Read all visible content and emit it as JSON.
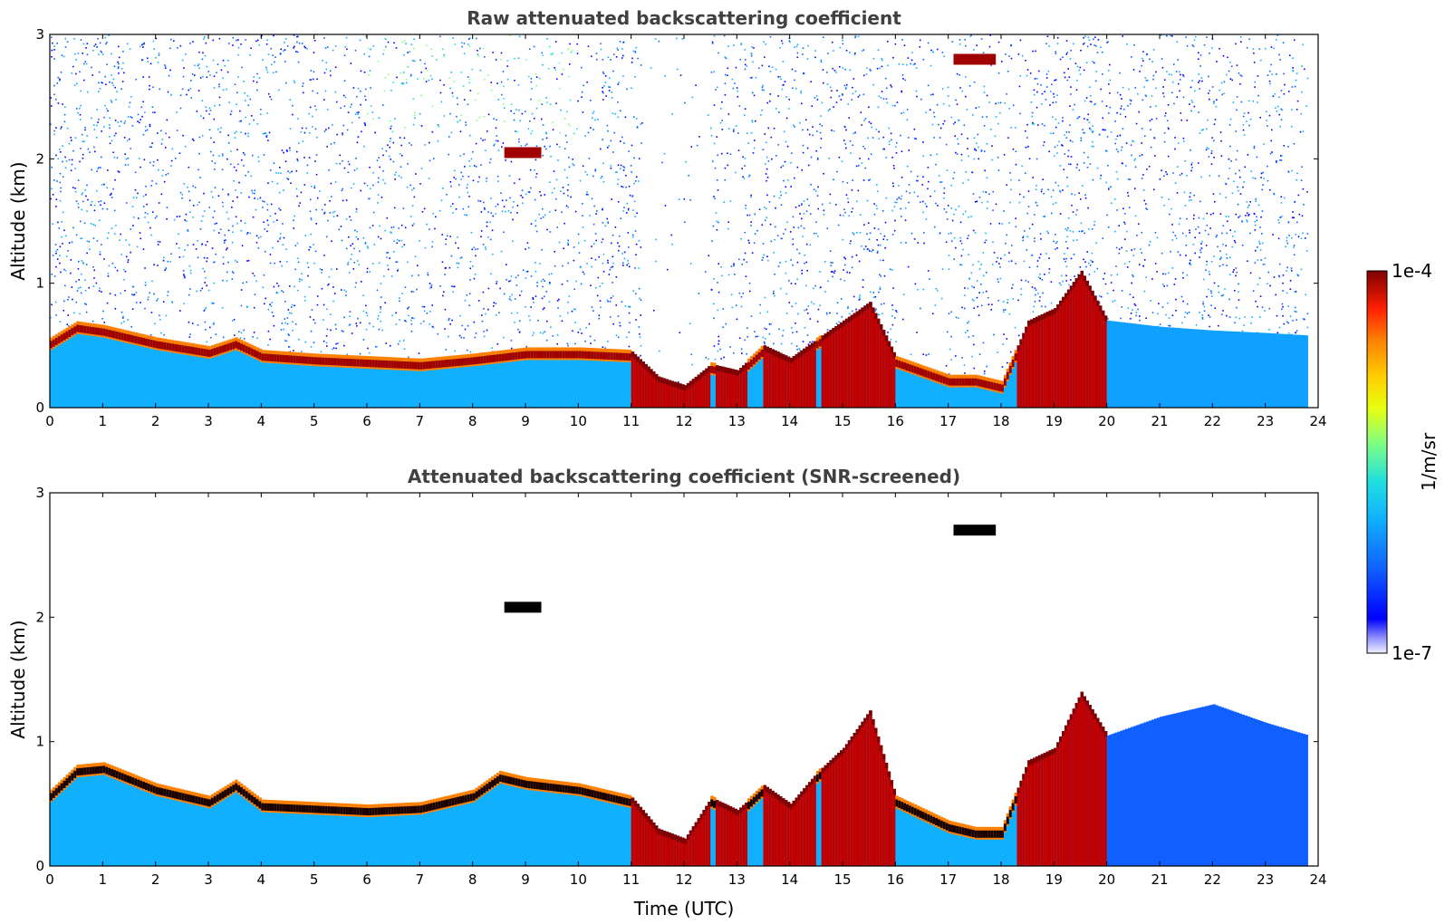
{
  "chart_data": [
    {
      "type": "heatmap",
      "title": "Raw attenuated backscattering coefficient",
      "ylabel": "Altitude (km)",
      "xlabel": "",
      "xlim": [
        0,
        24
      ],
      "ylim": [
        0,
        3
      ],
      "x_ticks": [
        "0",
        "1",
        "2",
        "3",
        "4",
        "5",
        "6",
        "7",
        "8",
        "9",
        "10",
        "11",
        "12",
        "13",
        "14",
        "15",
        "16",
        "17",
        "18",
        "19",
        "20",
        "21",
        "22",
        "23",
        "24"
      ],
      "y_ticks": [
        "0",
        "1",
        "2",
        "3"
      ],
      "layer_top_km": [
        [
          0,
          0.55
        ],
        [
          0.5,
          0.68
        ],
        [
          1,
          0.65
        ],
        [
          2,
          0.55
        ],
        [
          3,
          0.48
        ],
        [
          3.5,
          0.55
        ],
        [
          4,
          0.45
        ],
        [
          5,
          0.42
        ],
        [
          6,
          0.4
        ],
        [
          7,
          0.38
        ],
        [
          8,
          0.42
        ],
        [
          9,
          0.47
        ],
        [
          10,
          0.47
        ],
        [
          11,
          0.45
        ],
        [
          11.5,
          0.25
        ],
        [
          12,
          0.18
        ],
        [
          12.5,
          0.35
        ],
        [
          13,
          0.3
        ],
        [
          13.5,
          0.5
        ],
        [
          14,
          0.4
        ],
        [
          14.5,
          0.55
        ],
        [
          15,
          0.7
        ],
        [
          15.5,
          0.85
        ],
        [
          16,
          0.4
        ],
        [
          17,
          0.25
        ],
        [
          17.5,
          0.25
        ],
        [
          18,
          0.2
        ],
        [
          18.5,
          0.7
        ],
        [
          19,
          0.8
        ],
        [
          19.5,
          1.1
        ],
        [
          20,
          0.7
        ],
        [
          21,
          0.65
        ],
        [
          22,
          0.62
        ],
        [
          23,
          0.6
        ],
        [
          23.8,
          0.58
        ]
      ],
      "elevated_features": [
        {
          "t_start": 8.6,
          "t_end": 9.3,
          "alt_km": 2.05
        },
        {
          "t_start": 17.1,
          "t_end": 17.9,
          "alt_km": 2.8
        }
      ],
      "colorbar": {
        "min_label": "1e-7",
        "max_label": "1e-4",
        "unit": "1/m/sr",
        "scale": "log"
      }
    },
    {
      "type": "heatmap",
      "title": "Attenuated backscattering coefficient (SNR-screened)",
      "ylabel": "Altitude (km)",
      "xlabel": "Time (UTC)",
      "xlim": [
        0,
        24
      ],
      "ylim": [
        0,
        3
      ],
      "x_ticks": [
        "0",
        "1",
        "2",
        "3",
        "4",
        "5",
        "6",
        "7",
        "8",
        "9",
        "10",
        "11",
        "12",
        "13",
        "14",
        "15",
        "16",
        "17",
        "18",
        "19",
        "20",
        "21",
        "22",
        "23",
        "24"
      ],
      "y_ticks": [
        "0",
        "1",
        "2",
        "3"
      ],
      "layer_top_km": [
        [
          0,
          0.6
        ],
        [
          0.5,
          0.8
        ],
        [
          1,
          0.82
        ],
        [
          2,
          0.65
        ],
        [
          3,
          0.55
        ],
        [
          3.5,
          0.68
        ],
        [
          4,
          0.52
        ],
        [
          5,
          0.5
        ],
        [
          6,
          0.48
        ],
        [
          7,
          0.5
        ],
        [
          8,
          0.6
        ],
        [
          8.5,
          0.75
        ],
        [
          9,
          0.7
        ],
        [
          10,
          0.65
        ],
        [
          11,
          0.55
        ],
        [
          11.5,
          0.3
        ],
        [
          12,
          0.22
        ],
        [
          12.5,
          0.55
        ],
        [
          13,
          0.45
        ],
        [
          13.5,
          0.65
        ],
        [
          14,
          0.5
        ],
        [
          14.5,
          0.75
        ],
        [
          15,
          0.95
        ],
        [
          15.5,
          1.25
        ],
        [
          16,
          0.55
        ],
        [
          17,
          0.35
        ],
        [
          17.5,
          0.3
        ],
        [
          18,
          0.3
        ],
        [
          18.5,
          0.85
        ],
        [
          19,
          0.95
        ],
        [
          19.5,
          1.4
        ],
        [
          20,
          1.05
        ],
        [
          21,
          1.2
        ],
        [
          22,
          1.3
        ],
        [
          23,
          1.15
        ],
        [
          23.8,
          1.05
        ]
      ],
      "elevated_features": [
        {
          "t_start": 8.6,
          "t_end": 9.3,
          "alt_km": 2.08
        },
        {
          "t_start": 17.1,
          "t_end": 17.9,
          "alt_km": 2.7
        }
      ],
      "colorbar": {
        "min_label": "1e-7",
        "max_label": "1e-4",
        "unit": "1/m/sr",
        "scale": "log"
      }
    }
  ],
  "colorbar": {
    "max_label": "1e-4",
    "min_label": "1e-7",
    "unit": "1/m/sr",
    "colors": [
      "#7f0000",
      "#c00000",
      "#ff2000",
      "#ff8000",
      "#ffd000",
      "#e8ff10",
      "#80ff80",
      "#20e0e0",
      "#10b0ff",
      "#1060ff",
      "#0000ff",
      "#8080ff",
      "#e0e0ff"
    ]
  }
}
